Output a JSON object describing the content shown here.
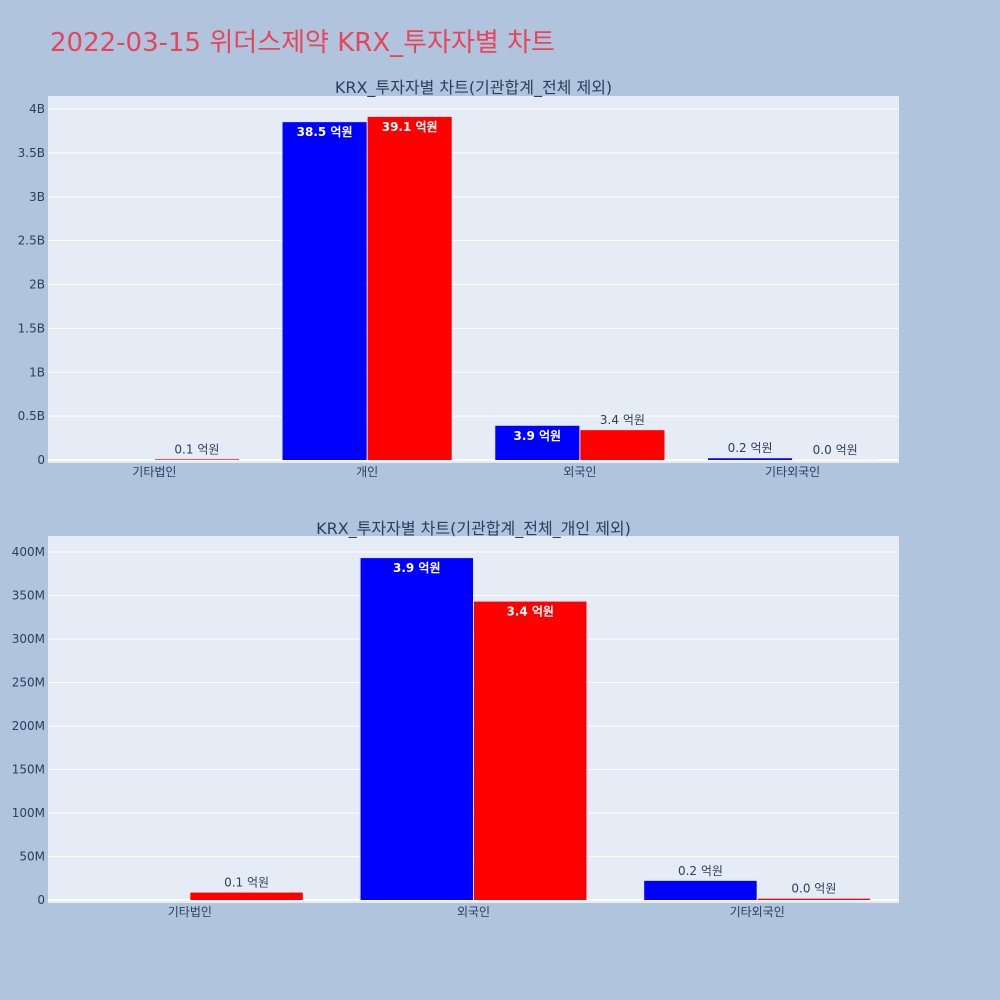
{
  "page": {
    "title": "2022-03-15 위더스제약 KRX_투자자별 차트"
  },
  "colors": {
    "series_a": "#0000ff",
    "series_b": "#ff0000",
    "plot_bg": "#e5ecf6",
    "page_bg": "#b0c4de",
    "title": "#e8455a"
  },
  "chart_data": [
    {
      "type": "bar",
      "title": "KRX_투자자별 차트(기관합계_전체 제외)",
      "categories": [
        "기타법인",
        "개인",
        "외국인",
        "기타외국인"
      ],
      "ylim": [
        0,
        4000000000
      ],
      "yticks": [
        0,
        500000000,
        1000000000,
        1500000000,
        2000000000,
        2500000000,
        3000000000,
        3500000000,
        4000000000
      ],
      "ytick_labels": [
        "0",
        "0.5B",
        "1B",
        "1.5B",
        "2B",
        "2.5B",
        "3B",
        "3.5B",
        "4B"
      ],
      "grid": true,
      "series": [
        {
          "values": [
            0,
            3850000000,
            390000000,
            20000000
          ],
          "labels": [
            "",
            "38.5 억원",
            "3.9 억원",
            "0.2 억원"
          ]
        },
        {
          "values": [
            8000000,
            3910000000,
            340000000,
            1000000
          ],
          "labels": [
            "0.1 억원",
            "39.1 억원",
            "3.4 억원",
            "0.0 억원"
          ]
        }
      ]
    },
    {
      "type": "bar",
      "title": "KRX_투자자별 차트(기관합계_전체_개인 제외)",
      "categories": [
        "기타법인",
        "외국인",
        "기타외국인"
      ],
      "ylim": [
        0,
        400000000
      ],
      "yticks": [
        0,
        50000000,
        100000000,
        150000000,
        200000000,
        250000000,
        300000000,
        350000000,
        400000000
      ],
      "ytick_labels": [
        "0",
        "50M",
        "100M",
        "150M",
        "200M",
        "250M",
        "300M",
        "350M",
        "400M"
      ],
      "grid": true,
      "series": [
        {
          "values": [
            0,
            393000000,
            22000000
          ],
          "labels": [
            "",
            "3.9 억원",
            "0.2 억원"
          ]
        },
        {
          "values": [
            8500000,
            343000000,
            1500000
          ],
          "labels": [
            "0.1 억원",
            "3.4 억원",
            "0.0 억원"
          ]
        }
      ]
    }
  ]
}
